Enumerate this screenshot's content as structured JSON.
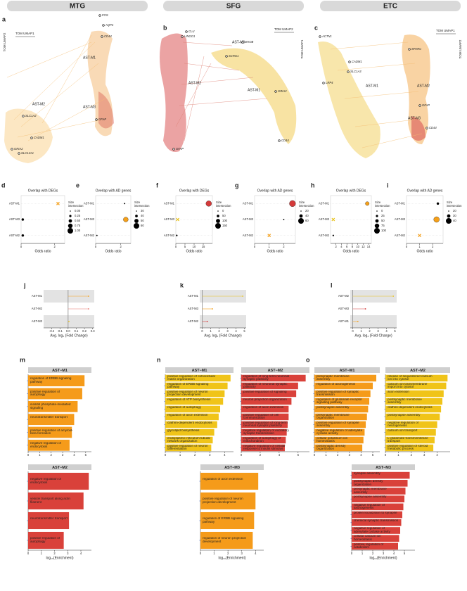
{
  "panel_headers": [
    "MTG",
    "SFG",
    "ETC"
  ],
  "umap_panels": [
    {
      "panel": "a",
      "x_axis": "TOM UMAP1",
      "y_axis": "TOM UMAP2",
      "modules": [
        "AST-M1",
        "AST-M2",
        "AST-M3"
      ],
      "genes": [
        "FOS",
        "AQP4",
        "CD44",
        "GFAP",
        "SLC1A2",
        "SLC14A1",
        "GRIA2",
        "CADM1"
      ]
    },
    {
      "panel": "b",
      "x_axis": "TOM UMAP2",
      "y_axis": "TOM UMAP1",
      "modules": [
        "AST-M3",
        "AST-M2",
        "AST-M1"
      ],
      "genes": [
        "CLU",
        "LINGO1",
        "SCRG1",
        "MAOB",
        "GRIA2",
        "CD44",
        "GFAP"
      ]
    },
    {
      "panel": "c",
      "x_axis": "TOM UMAP1",
      "y_axis": "TOM UMAP2",
      "modules": [
        "AST-M2",
        "AST-M1",
        "AST-M3"
      ],
      "genes": [
        "ACTN1",
        "CADM1",
        "SLC1A3",
        "LRP4",
        "SPARC",
        "GFAP",
        "CD44"
      ]
    }
  ],
  "chart_data": [
    {
      "type": "dot",
      "panel": "d",
      "title": "Overlap with DEGs",
      "x_label": "Odds ratio",
      "categories": [
        "AST-M1",
        "AST-M3",
        "AST-M2"
      ],
      "values": [
        2.2,
        0.1,
        0.1
      ],
      "sizes": [
        1,
        0.25,
        0.25
      ],
      "colors": [
        "#f5a01a",
        "#000000",
        "#000000"
      ],
      "shapes": [
        "x",
        "dot",
        "dot"
      ],
      "xlim": [
        0,
        2.6
      ],
      "xticks": [
        0,
        2
      ],
      "size_title": [
        "Size",
        "intersection"
      ],
      "size_legend": [
        {
          "value": 0,
          "label": "0.00"
        },
        {
          "value": 0.25,
          "label": "0.25"
        },
        {
          "value": 0.5,
          "label": "0.50"
        },
        {
          "value": 0.75,
          "label": "0.75"
        },
        {
          "value": 1,
          "label": "1.00"
        }
      ]
    },
    {
      "type": "dot",
      "panel": "e",
      "title": "Overlap with AD genes",
      "x_label": "Odds ratio",
      "categories": [
        "AST-M1",
        "AST-M3",
        "AST-M2"
      ],
      "values": [
        2.3,
        2.4,
        0.1
      ],
      "sizes": [
        30,
        55,
        30
      ],
      "colors": [
        "#000000",
        "#f5a01a",
        "#000000"
      ],
      "shapes": [
        "dot",
        "dot",
        "dot"
      ],
      "xlim": [
        0,
        2.8
      ],
      "xticks": [
        0,
        2
      ],
      "size_title": [
        "Size",
        "intersection"
      ],
      "size_legend": [
        30,
        40,
        50,
        60
      ]
    },
    {
      "type": "dot",
      "panel": "f",
      "title": "Overlap with DEGs",
      "x_label": "Odds ratio",
      "categories": [
        "AST-M1",
        "AST-M3",
        "AST-M2"
      ],
      "values": [
        18,
        1,
        0.5
      ],
      "sizes": [
        150,
        20,
        10
      ],
      "colors": [
        "#d43a3a",
        "#e8c21a",
        "#000000"
      ],
      "shapes": [
        "dot",
        "x",
        "dot"
      ],
      "xlim": [
        0,
        20
      ],
      "xticks": [
        0,
        5,
        10,
        15
      ],
      "size_title": [
        "Size",
        "intersection"
      ],
      "size_legend": [
        0,
        50,
        100,
        150
      ]
    },
    {
      "type": "dot",
      "panel": "g",
      "title": "Overlap with AD genes",
      "x_label": "Odds ratio",
      "categories": [
        "AST-M1",
        "AST-M3",
        "AST-M2"
      ],
      "values": [
        2.6,
        2.0,
        1.0
      ],
      "sizes": [
        65,
        20,
        20
      ],
      "colors": [
        "#d43a3a",
        "#000000",
        "#f5a01a"
      ],
      "shapes": [
        "dot",
        "dot",
        "x"
      ],
      "xlim": [
        0,
        2.8
      ],
      "xticks": [
        0,
        1,
        2
      ],
      "size_title": [
        "Size",
        "intersection"
      ],
      "size_legend": [
        20,
        40,
        60
      ]
    },
    {
      "type": "dot",
      "panel": "h",
      "title": "Overlap with DEGs",
      "x_label": "Odds ratio",
      "categories": [
        "AST-M1",
        "AST-M3",
        "AST-M2"
      ],
      "values": [
        13.5,
        1,
        1
      ],
      "sizes": [
        60,
        20,
        5
      ],
      "colors": [
        "#f5a01a",
        "#e8c21a",
        "#000000"
      ],
      "shapes": [
        "dot",
        "x",
        "dot"
      ],
      "xlim": [
        0,
        15
      ],
      "xticks": [
        2,
        4,
        6,
        8,
        10,
        12,
        14
      ],
      "size_title": [
        "Size",
        "intersection"
      ],
      "size_legend": [
        0,
        25,
        50,
        75,
        100
      ]
    },
    {
      "type": "dot",
      "panel": "i",
      "title": "Overlap with AD genes",
      "x_label": "Odds ratio",
      "categories": [
        "AST-M1",
        "AST-M3",
        "AST-M2"
      ],
      "values": [
        2.4,
        2.3,
        1.0
      ],
      "sizes": [
        25,
        40,
        20
      ],
      "colors": [
        "#000000",
        "#f5a01a",
        "#f5a01a"
      ],
      "shapes": [
        "dot",
        "dot",
        "x"
      ],
      "xlim": [
        0,
        2.8
      ],
      "xticks": [
        0,
        1,
        2
      ],
      "size_title": [
        "Size",
        "intersection"
      ],
      "size_legend": [
        20,
        30,
        40
      ]
    },
    {
      "type": "lollipop",
      "panel": "j",
      "x_label": "Avg. log₂ (Fold Change)",
      "categories": [
        "AST-M1",
        "AST-M2",
        "AST-M3"
      ],
      "values": [
        0.25,
        0.25,
        0.01
      ],
      "colors": [
        "#f5a01a",
        "#e8736b",
        "#e8c21a"
      ],
      "xlim": [
        -0.3,
        0.32
      ],
      "xticks": [
        -0.2,
        -0.1,
        {
          "value": 0,
          "label": "0.0"
        },
        0.1,
        0.2,
        0.3
      ]
    },
    {
      "type": "lollipop",
      "panel": "k",
      "x_label": "Avg. log₂ (Fold Change)",
      "categories": [
        "AST-M1",
        "AST-M3",
        "AST-M2"
      ],
      "values": [
        4.8,
        1.2,
        0.6
      ],
      "colors": [
        "#e8c21a",
        "#f5a01a",
        "#d43a3a"
      ],
      "xlim": [
        -0.3,
        5.2
      ],
      "xticks": [
        0,
        1,
        2,
        3,
        4,
        5
      ]
    },
    {
      "type": "lollipop",
      "panel": "l",
      "x_label": "Avg. log₂ (Fold Change)",
      "categories": [
        "AST-M2",
        "AST-M3",
        "AST-M1"
      ],
      "values": [
        4.8,
        1.5,
        0.6
      ],
      "colors": [
        "#e8c21a",
        "#d43a3a",
        "#f5a01a"
      ],
      "xlim": [
        -0.3,
        5.2
      ],
      "xticks": [
        0,
        1,
        2,
        3,
        4,
        5
      ]
    },
    {
      "type": "bar",
      "panel": "m",
      "title": "AST−M1",
      "color": "#f59b1a",
      "categories": [
        "regulation of ERBB signaling pathway",
        "positive regulation of autophagy",
        "inositol phosphate-mediated signaling",
        "neurotransmitter transport",
        "positive regulation of amyloid-beta formation",
        "negative regulation of endocytosis"
      ],
      "values": [
        4.9,
        4.7,
        4.3,
        4.0,
        3.8,
        3.6
      ],
      "xlim": [
        0,
        5.5
      ],
      "xticks": [
        0,
        1,
        2,
        3,
        4,
        5
      ]
    },
    {
      "type": "bar",
      "title": "AST−M2",
      "color": "#d9413a",
      "x_label": "log₁₀(Enrichment)",
      "categories": [
        "negative regulation of endocytosis",
        "vesicle transport along actin filament",
        "neurotransmitter transport",
        "positive regulation of autophagy"
      ],
      "values": [
        4.6,
        4.2,
        3.1,
        2.7
      ],
      "xlim": [
        0,
        4.8
      ],
      "xticks": [
        0,
        1,
        2,
        3,
        4
      ]
    },
    {
      "type": "bar",
      "panel": "n",
      "title": "AST−M1",
      "color": "#f0c419",
      "categories": [
        "positive regulation of extracellular matrix organization",
        "regulation of ERBB signaling pathway",
        "positive regulation of neuron projection development",
        "regulation of ATP biosynthesis",
        "regulation of autophagy",
        "regulation of axon extension",
        "clathrin-dependent endocytosis",
        "glycolipid biosynthesis",
        "endoplasmic reticulum tubular network organization",
        "positive regulation of neuron differentiation"
      ],
      "values": [
        4.4,
        4.2,
        4.0,
        3.9,
        3.7,
        3.6,
        3.5,
        3.3,
        3.2,
        3.1
      ],
      "xlim": [
        0,
        4.6
      ],
      "xticks": [
        0,
        1,
        2,
        3,
        4
      ]
    },
    {
      "type": "bar",
      "title": "AST−M2",
      "color": "#d9413a",
      "categories": [
        "regulation of long-term neuronal synaptic plasticity",
        "regulation of neuronal synaptic plasticity",
        "positive regulation of signaling",
        "neuron projection organization",
        "regulation of axon extension",
        "positive regulation of cell communication",
        "positive regulation of long-term neuronal synaptic plasticity",
        "negative regulation of excitatory synaptic transmission",
        "regulation of autophagy of mitochondrion",
        "negative regulation of cellular response to insulin stimulus"
      ],
      "values": [
        6.8,
        6.0,
        5.8,
        5.3,
        5.0,
        5.0,
        4.9,
        4.8,
        4.7,
        4.6
      ],
      "xlim": [
        0,
        7.2
      ],
      "xticks": [
        0,
        2,
        4,
        6
      ]
    },
    {
      "type": "bar",
      "title": "AST−M3",
      "color": "#f59b1a",
      "x_label": "log₁₀(Enrichment)",
      "categories": [
        "regulation of axon extension",
        "positive regulation of neuron projection development",
        "regulation of ERBB signaling pathway",
        "regulation of neuron projection development"
      ],
      "values": [
        4.2,
        4.0,
        3.9,
        3.8
      ],
      "xlim": [
        0,
        4.6
      ],
      "xticks": [
        0,
        1,
        2,
        3,
        4
      ]
    },
    {
      "type": "bar",
      "panel": "o",
      "title": "AST−M1",
      "color": "#f59b1a",
      "categories": [
        "presynaptic membrane assembly",
        "regulation of axonogenesis",
        "positive regulation of synaptic transmission",
        "regulation of glutamate receptor signaling pathway",
        "postsynapse assembly",
        "presynaptic membrane organization",
        "positive regulation of synapse assembly",
        "negative regulation of adenylate cyclase activity",
        "cellular potassium ion homeostasis",
        "postsynaptic density organization"
      ],
      "values": [
        5.3,
        5.0,
        4.8,
        4.7,
        4.6,
        4.5,
        4.4,
        4.3,
        4.2,
        4.1
      ],
      "xlim": [
        0,
        5.6
      ],
      "xticks": [
        0,
        1,
        2,
        3,
        4,
        5
      ]
    },
    {
      "type": "bar",
      "title": "AST−M2",
      "color": "#f0c419",
      "categories": [
        "release of sequestered calcium ion into cytosol",
        "calcium ion transmembrane import into cytosol",
        "axon extension",
        "postsynaptic membrane assembly",
        "clathrin-dependent endocytosis",
        "postsynapse assembly",
        "negative regulation of neurogenesis",
        "calcium ion transport",
        "L-glutamate transmembrane transport",
        "positive regulation of steroid metabolic process"
      ],
      "values": [
        4.8,
        4.7,
        4.5,
        4.4,
        4.3,
        4.2,
        4.0,
        3.9,
        3.8,
        3.7
      ],
      "xlim": [
        0,
        5
      ],
      "xticks": [
        0,
        1,
        2,
        3,
        4
      ]
    },
    {
      "type": "bar",
      "title": "AST−M3",
      "color": "#d9413a",
      "x_label": "log₁₀(Enrichment)",
      "categories": [
        "synapse assembly",
        "postsynaptic density organization",
        "presynaptic membrane assembly",
        "postsynapse assembly",
        "negative regulation of axonogenesis",
        "protein localization to synapse",
        "chemical synaptic transmission",
        "negative regulation of adenylate cyclase activity",
        "cellular calcium ion homeostasis",
        "positive regulation of catabolism"
      ],
      "values": [
        5.5,
        5.3,
        5.1,
        5.0,
        4.9,
        4.8,
        4.7,
        4.6,
        4.5,
        4.4
      ],
      "xlim": [
        0,
        6
      ],
      "xticks": [
        0,
        1,
        2,
        3,
        4,
        5
      ]
    }
  ]
}
